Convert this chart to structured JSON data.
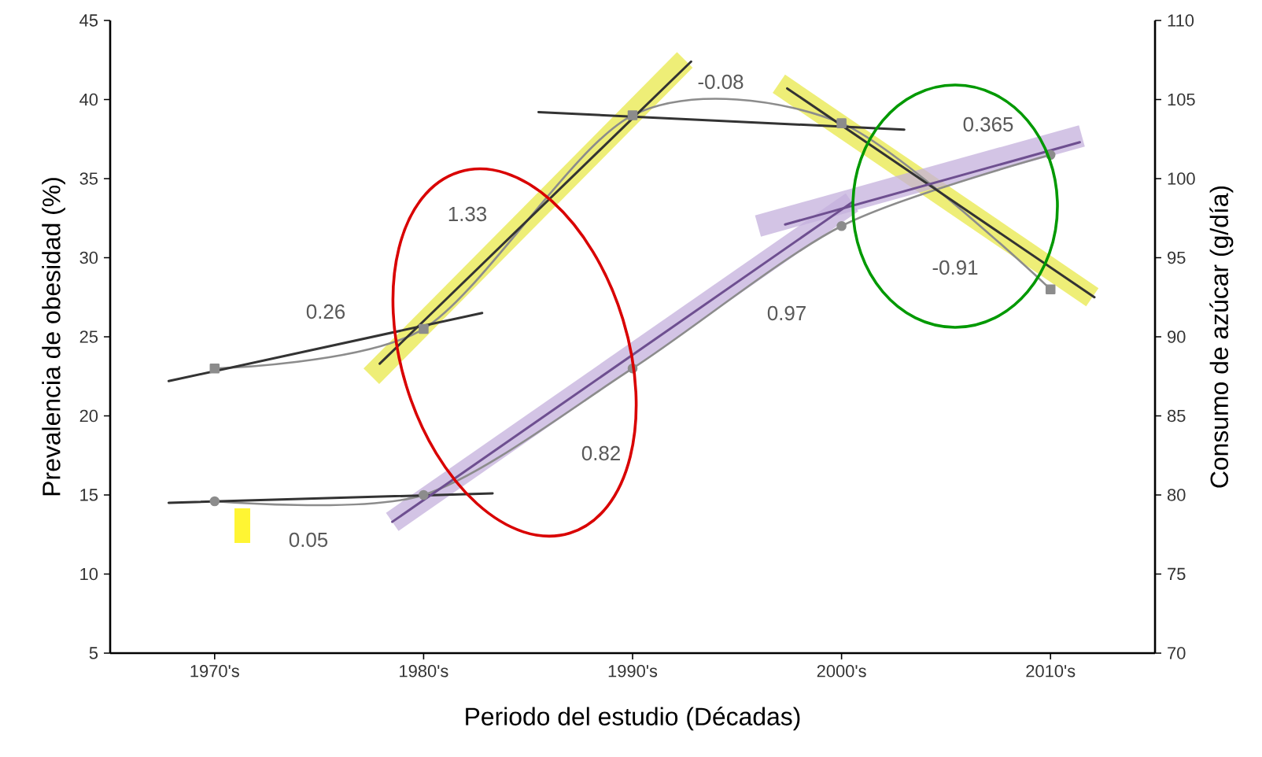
{
  "chart_data": {
    "type": "line",
    "xlabel": "Periodo del estudio (Décadas)",
    "ylabel": "Prevalencia de obesidad (%)",
    "y2label": "Consumo de azúcar (g/día)",
    "xlim": [
      1965,
      2015
    ],
    "xticks": [
      {
        "value": 1970,
        "label": "1970's"
      },
      {
        "value": 1980,
        "label": "1980's"
      },
      {
        "value": 1990,
        "label": "1990's"
      },
      {
        "value": 2000,
        "label": "2000's"
      },
      {
        "value": 2010,
        "label": "2010's"
      }
    ],
    "ylim": [
      5,
      45
    ],
    "yticks": [
      5,
      10,
      15,
      20,
      25,
      30,
      35,
      40,
      45
    ],
    "y2lim": [
      70,
      110
    ],
    "y2ticks": [
      70,
      75,
      80,
      85,
      90,
      95,
      100,
      105,
      110
    ],
    "grid": false,
    "series": [
      {
        "color": "#e8e84a",
        "x": [
          1977.5,
          1992.5
        ],
        "values": [
          22.5,
          42.5
        ]
      },
      {
        "color": "#e8e84a",
        "x": [
          1997,
          2012
        ],
        "values": [
          41,
          27.5
        ]
      },
      {
        "color": "#c4b0dc",
        "x": [
          1978.5,
          2000.5
        ],
        "values": [
          13.3,
          33.5
        ]
      },
      {
        "color": "#c4b0dc",
        "x": [
          1996,
          2011.5
        ],
        "values": [
          32,
          37.7
        ]
      },
      {
        "color": "#8c8c8c",
        "x": [
          1970,
          1980,
          1990,
          2000,
          2010
        ],
        "values": [
          23,
          25.5,
          39,
          38.5,
          28
        ],
        "marker": "square"
      },
      {
        "color": "#8c8c8c",
        "x": [
          1970,
          1980,
          1990,
          2000,
          2010
        ],
        "values": [
          14.6,
          15,
          23,
          32,
          36.5
        ],
        "marker": "circle"
      },
      {
        "color": "#333333",
        "x": [
          1967.8,
          1982.8
        ],
        "values": [
          22.2,
          26.5
        ]
      },
      {
        "color": "#333333",
        "x": [
          1967.8,
          1983.3
        ],
        "values": [
          14.5,
          15.1
        ]
      },
      {
        "color": "#333333",
        "x": [
          1977.9,
          1992.8
        ],
        "values": [
          23.3,
          42.4
        ]
      },
      {
        "color": "#333333",
        "x": [
          1985.5,
          2003
        ],
        "values": [
          39.2,
          38.1
        ]
      },
      {
        "color": "#333333",
        "x": [
          1997.4,
          2012.1
        ],
        "values": [
          40.7,
          27.5
        ]
      },
      {
        "color": "#6e4f90",
        "x": [
          1978.5,
          2000.5
        ],
        "values": [
          13.3,
          33.5
        ]
      },
      {
        "color": "#6e4f90",
        "x": [
          1997.3,
          2011.4
        ],
        "values": [
          32.1,
          37.3
        ]
      }
    ],
    "annotations": [
      "0.26",
      "1.33",
      "0.05",
      "0.82",
      "-0.08",
      "0.365",
      "-0.91",
      "0.97"
    ]
  }
}
